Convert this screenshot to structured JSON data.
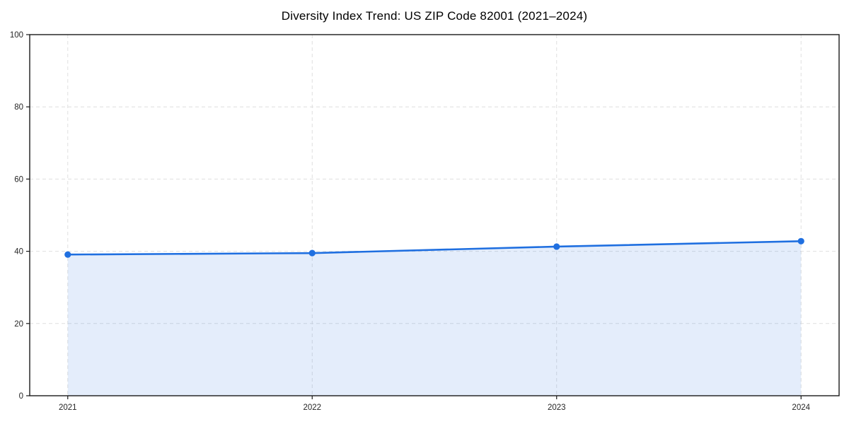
{
  "title": "Diversity Index Trend: US ZIP Code 82001 (2021–2024)",
  "colors": {
    "line": "#1f6fe0",
    "marker": "#1f6fe0",
    "area_fill": "#1f6fe0",
    "area_opacity": 0.12,
    "grid": "#dfdfdf",
    "spine": "#1a1a1a",
    "tick_text": "#262626",
    "background": "#ffffff"
  },
  "chart_data": {
    "type": "area",
    "title": "Diversity Index Trend: US ZIP Code 82001 (2021–2024)",
    "x": [
      2021,
      2022,
      2023,
      2024
    ],
    "categories": [
      "2021",
      "2022",
      "2023",
      "2024"
    ],
    "series": [
      {
        "name": "Diversity Index",
        "values": [
          39.1,
          39.5,
          41.3,
          42.8
        ]
      }
    ],
    "xlabel": "",
    "ylabel": "",
    "ylim": [
      0,
      100
    ],
    "yticks": [
      0,
      20,
      40,
      60,
      80,
      100
    ],
    "grid": "dashed",
    "legend_position": "none",
    "marker": "circle",
    "area_baseline": 0
  }
}
